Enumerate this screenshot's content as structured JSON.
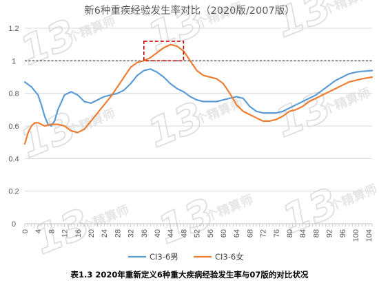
{
  "chart_data": {
    "type": "line",
    "title": "新6种重疾经验发生率对比（2020版/2007版）",
    "caption": "表1.3    2020年重新定义6种重大疾病经验发生率与07版的对比状况",
    "watermark": {
      "number": "13",
      "text": "个精算师"
    },
    "xlabel": "",
    "ylabel": "",
    "ylim": [
      0,
      1.2
    ],
    "yticks": [
      "0",
      "0.2",
      "0.4",
      "0.6",
      "0.8",
      "1",
      "1.2"
    ],
    "xlim": [
      0,
      105
    ],
    "xticks": [
      "0",
      "4",
      "8",
      "12",
      "16",
      "20",
      "24",
      "28",
      "32",
      "36",
      "40",
      "44",
      "48",
      "52",
      "56",
      "60",
      "64",
      "68",
      "72",
      "76",
      "80",
      "84",
      "88",
      "92",
      "96",
      "100",
      "104"
    ],
    "reference_line": {
      "y": 1,
      "style": "dashed",
      "color": "#000000"
    },
    "highlight_box": {
      "x": [
        36,
        48
      ],
      "y": [
        1.0,
        1.12
      ],
      "color": "#c00000",
      "style": "dashed"
    },
    "grid": true,
    "legend_position": "bottom",
    "series": [
      {
        "name": "CI3-6男",
        "color": "#5b9bd5",
        "x": [
          0,
          2,
          4,
          5,
          6,
          7,
          8,
          9,
          10,
          12,
          14,
          16,
          18,
          20,
          22,
          24,
          26,
          28,
          30,
          32,
          34,
          36,
          38,
          40,
          42,
          44,
          46,
          48,
          50,
          52,
          54,
          56,
          58,
          60,
          62,
          64,
          66,
          68,
          70,
          72,
          74,
          76,
          78,
          80,
          82,
          84,
          86,
          88,
          90,
          92,
          94,
          96,
          98,
          100,
          102,
          105
        ],
        "values": [
          0.87,
          0.84,
          0.79,
          0.73,
          0.66,
          0.61,
          0.6,
          0.63,
          0.7,
          0.79,
          0.81,
          0.79,
          0.75,
          0.74,
          0.76,
          0.78,
          0.79,
          0.8,
          0.82,
          0.86,
          0.91,
          0.94,
          0.95,
          0.93,
          0.9,
          0.86,
          0.83,
          0.81,
          0.78,
          0.76,
          0.75,
          0.75,
          0.75,
          0.76,
          0.77,
          0.78,
          0.77,
          0.72,
          0.69,
          0.68,
          0.68,
          0.68,
          0.69,
          0.71,
          0.73,
          0.75,
          0.77,
          0.79,
          0.82,
          0.85,
          0.88,
          0.9,
          0.92,
          0.93,
          0.935,
          0.94
        ]
      },
      {
        "name": "CI3-6女",
        "color": "#ed7d31",
        "x": [
          0,
          1,
          2,
          3,
          4,
          6,
          8,
          10,
          12,
          14,
          16,
          18,
          20,
          22,
          24,
          26,
          28,
          30,
          32,
          34,
          36,
          38,
          40,
          42,
          44,
          46,
          48,
          50,
          52,
          54,
          56,
          58,
          60,
          62,
          64,
          66,
          68,
          70,
          72,
          74,
          76,
          78,
          80,
          82,
          84,
          86,
          88,
          90,
          92,
          94,
          96,
          98,
          100,
          102,
          105
        ],
        "values": [
          0.49,
          0.56,
          0.6,
          0.62,
          0.62,
          0.6,
          0.61,
          0.61,
          0.6,
          0.57,
          0.56,
          0.58,
          0.63,
          0.68,
          0.73,
          0.78,
          0.84,
          0.9,
          0.96,
          0.99,
          1.0,
          1.02,
          1.05,
          1.08,
          1.1,
          1.09,
          1.06,
          1.0,
          0.94,
          0.91,
          0.9,
          0.89,
          0.86,
          0.8,
          0.73,
          0.69,
          0.67,
          0.65,
          0.63,
          0.63,
          0.64,
          0.66,
          0.69,
          0.7,
          0.72,
          0.75,
          0.77,
          0.79,
          0.81,
          0.83,
          0.85,
          0.87,
          0.88,
          0.89,
          0.9
        ]
      }
    ]
  }
}
